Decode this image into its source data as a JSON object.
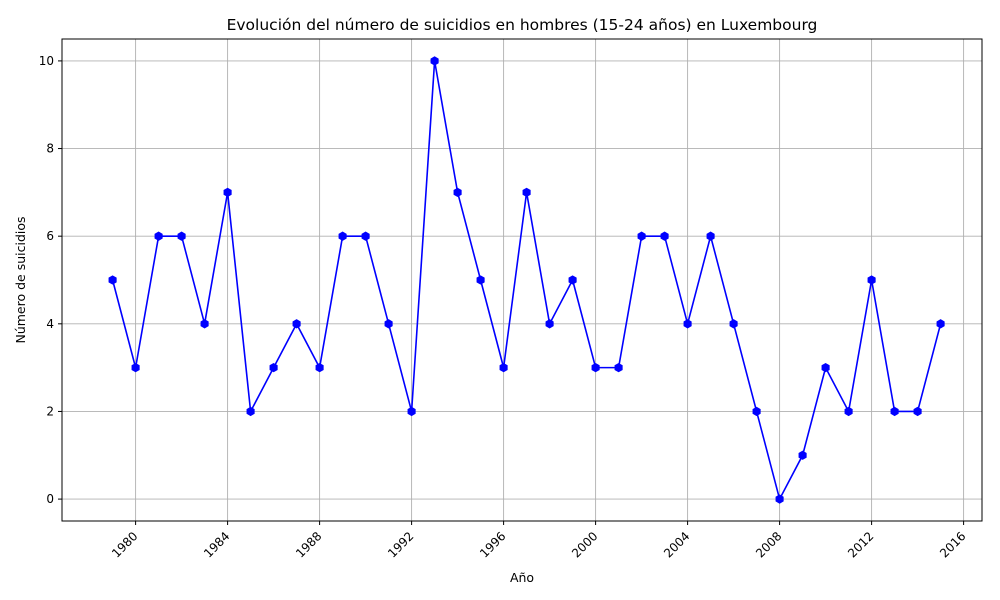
{
  "chart_data": {
    "type": "line",
    "title": "Evolución del número de suicidios en hombres (15-24 años) en Luxembourg",
    "xlabel": "Año",
    "ylabel": "Número de suicidios",
    "xlim": [
      1976.8,
      2016.8
    ],
    "ylim": [
      -0.5,
      10.5
    ],
    "xticks": [
      1980,
      1984,
      1988,
      1992,
      1996,
      2000,
      2004,
      2008,
      2012,
      2016
    ],
    "yticks": [
      0,
      2,
      4,
      6,
      8,
      10
    ],
    "grid": true,
    "color": "#0000ff",
    "x": [
      1979,
      1980,
      1981,
      1982,
      1983,
      1984,
      1985,
      1986,
      1987,
      1988,
      1989,
      1990,
      1991,
      1992,
      1993,
      1994,
      1995,
      1996,
      1997,
      1998,
      1999,
      2000,
      2001,
      2002,
      2003,
      2004,
      2005,
      2006,
      2007,
      2008,
      2009,
      2010,
      2011,
      2012,
      2013,
      2014,
      2015
    ],
    "y": [
      5,
      3,
      6,
      6,
      4,
      7,
      2,
      3,
      4,
      3,
      6,
      6,
      4,
      2,
      10,
      7,
      5,
      3,
      7,
      4,
      5,
      3,
      3,
      6,
      6,
      4,
      6,
      4,
      2,
      0,
      1,
      3,
      2,
      5,
      2,
      2,
      4
    ]
  }
}
